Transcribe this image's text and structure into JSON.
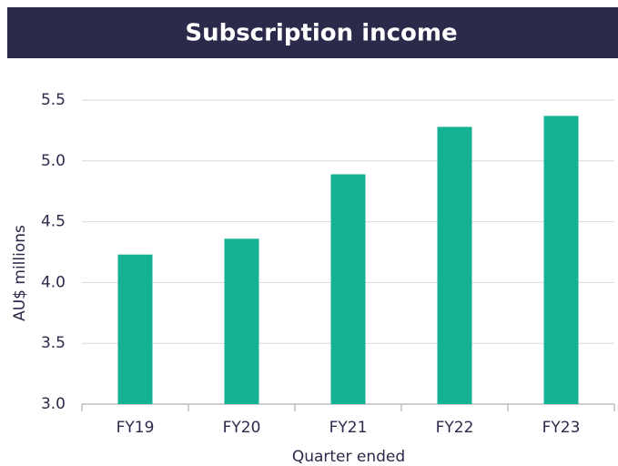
{
  "chart_data": {
    "type": "bar",
    "title": "Subscription income",
    "categories": [
      "FY19",
      "FY20",
      "FY21",
      "FY22",
      "FY23"
    ],
    "values": [
      4.23,
      4.36,
      4.89,
      5.28,
      5.37
    ],
    "color": "#14b195",
    "xlabel": "Quarter ended",
    "ylabel": "AU$ millions",
    "ylim": [
      3.0,
      5.5
    ],
    "yticks": [
      {
        "value": 3.0,
        "label": "3.0"
      },
      {
        "value": 3.5,
        "label": "3.5"
      },
      {
        "value": 4.0,
        "label": "4.0"
      },
      {
        "value": 4.5,
        "label": "4.5"
      },
      {
        "value": 5.0,
        "label": "5.0"
      },
      {
        "value": 5.5,
        "label": "5.5"
      }
    ],
    "grid": true
  }
}
